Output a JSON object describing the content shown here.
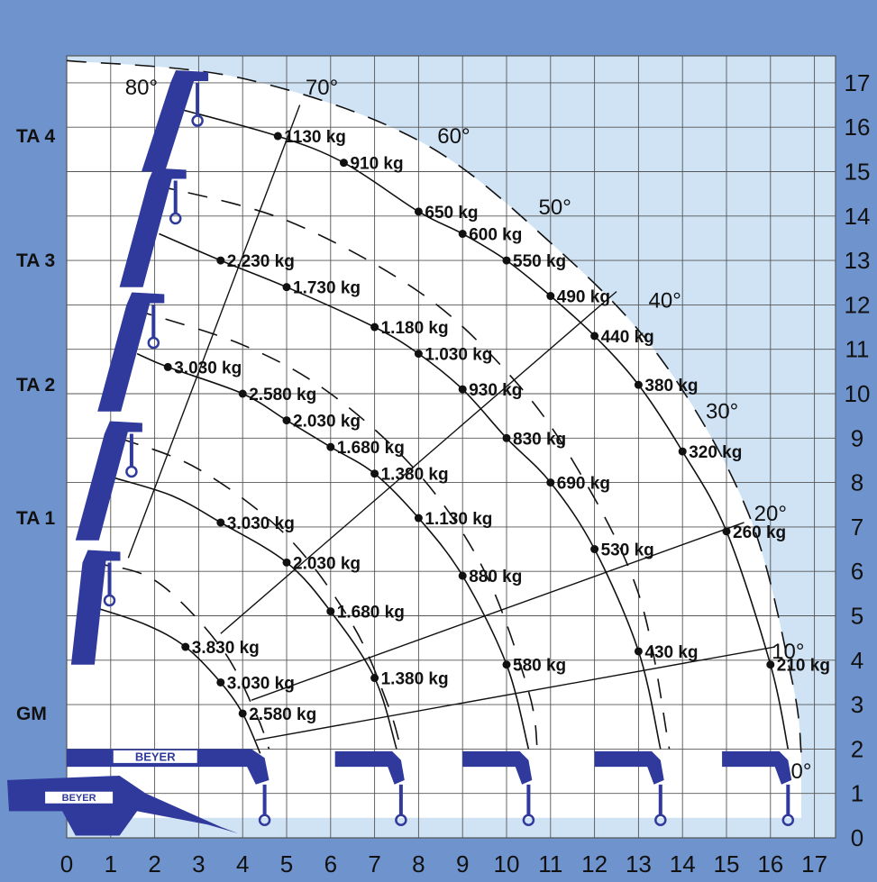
{
  "brand": "BEYER",
  "colors": {
    "frame": "#6f93cd",
    "chart_bg": "#cfe3f5",
    "reach_area": "#ffffff",
    "grid": "#555555",
    "crane": "#2f3a9c",
    "ink": "#111111"
  },
  "chart_data": {
    "type": "load_chart",
    "x_ticks": [
      "0",
      "1",
      "2",
      "3",
      "4",
      "5",
      "6",
      "7",
      "8",
      "9",
      "10",
      "11",
      "12",
      "13",
      "14",
      "15",
      "16",
      "17"
    ],
    "y_ticks": [
      "0",
      "1",
      "2",
      "3",
      "4",
      "5",
      "6",
      "7",
      "8",
      "9",
      "10",
      "11",
      "12",
      "13",
      "14",
      "15",
      "16",
      "17"
    ],
    "xlim": [
      0,
      17.5
    ],
    "ylim": [
      0,
      17.5
    ],
    "angle_labels": [
      {
        "text": "80°",
        "x": 1.7,
        "y": 16.9
      },
      {
        "text": "70°",
        "x": 5.8,
        "y": 16.9
      },
      {
        "text": "60°",
        "x": 8.8,
        "y": 15.8
      },
      {
        "text": "50°",
        "x": 11.1,
        "y": 14.2
      },
      {
        "text": "40°",
        "x": 13.6,
        "y": 12.1
      },
      {
        "text": "30°",
        "x": 14.9,
        "y": 9.6
      },
      {
        "text": "20°",
        "x": 16.0,
        "y": 7.3
      },
      {
        "text": "10°",
        "x": 16.4,
        "y": 4.2
      },
      {
        "text": "0°",
        "x": 16.7,
        "y": 1.5
      }
    ],
    "extension_labels": [
      {
        "text": "TA 4",
        "y": 15.8
      },
      {
        "text": "TA 3",
        "y": 13.0
      },
      {
        "text": "TA 2",
        "y": 10.2
      },
      {
        "text": "TA 1",
        "y": 7.2
      },
      {
        "text": "GM",
        "y": 2.8
      }
    ],
    "load_points": [
      {
        "label": "1130 kg",
        "x": 4.8,
        "y": 15.8
      },
      {
        "label": "910 kg",
        "x": 6.3,
        "y": 15.2
      },
      {
        "label": "650 kg",
        "x": 8.0,
        "y": 14.1
      },
      {
        "label": "600 kg",
        "x": 9.0,
        "y": 13.6
      },
      {
        "label": "550 kg",
        "x": 10.0,
        "y": 13.0
      },
      {
        "label": "490 kg",
        "x": 11.0,
        "y": 12.2
      },
      {
        "label": "440 kg",
        "x": 12.0,
        "y": 11.3
      },
      {
        "label": "380 kg",
        "x": 13.0,
        "y": 10.2
      },
      {
        "label": "320 kg",
        "x": 14.0,
        "y": 8.7
      },
      {
        "label": "260 kg",
        "x": 15.0,
        "y": 6.9
      },
      {
        "label": "210 kg",
        "x": 16.0,
        "y": 3.9
      },
      {
        "label": "2.230 kg",
        "x": 3.5,
        "y": 13.0
      },
      {
        "label": "1.730 kg",
        "x": 5.0,
        "y": 12.4
      },
      {
        "label": "1.180 kg",
        "x": 7.0,
        "y": 11.5
      },
      {
        "label": "1.030 kg",
        "x": 8.0,
        "y": 10.9
      },
      {
        "label": "930 kg",
        "x": 9.0,
        "y": 10.1
      },
      {
        "label": "830 kg",
        "x": 10.0,
        "y": 9.0
      },
      {
        "label": "690 kg",
        "x": 11.0,
        "y": 8.0
      },
      {
        "label": "530 kg",
        "x": 12.0,
        "y": 6.5
      },
      {
        "label": "430 kg",
        "x": 13.0,
        "y": 4.2
      },
      {
        "label": "3.030 kg",
        "x": 2.3,
        "y": 10.6
      },
      {
        "label": "2.580 kg",
        "x": 4.0,
        "y": 10.0
      },
      {
        "label": "2.030 kg",
        "x": 5.0,
        "y": 9.4
      },
      {
        "label": "1.680 kg",
        "x": 6.0,
        "y": 8.8
      },
      {
        "label": "1.380 kg",
        "x": 7.0,
        "y": 8.2
      },
      {
        "label": "1.130 kg",
        "x": 8.0,
        "y": 7.2
      },
      {
        "label": "880 kg",
        "x": 9.0,
        "y": 5.9
      },
      {
        "label": "580 kg",
        "x": 10.0,
        "y": 3.9
      },
      {
        "label": "3.030 kg",
        "x": 3.5,
        "y": 7.1
      },
      {
        "label": "2.030 kg",
        "x": 5.0,
        "y": 6.2
      },
      {
        "label": "1.680 kg",
        "x": 6.0,
        "y": 5.1
      },
      {
        "label": "1.380 kg",
        "x": 7.0,
        "y": 3.6
      },
      {
        "label": "3.830 kg",
        "x": 2.7,
        "y": 4.3
      },
      {
        "label": "3.030 kg",
        "x": 3.5,
        "y": 3.5
      },
      {
        "label": "2.580 kg",
        "x": 4.0,
        "y": 2.8
      }
    ],
    "reach_arcs": [
      {
        "name": "GM",
        "pts": [
          [
            0.6,
            5.2
          ],
          [
            1.8,
            4.8
          ],
          [
            2.7,
            4.3
          ],
          [
            3.5,
            3.5
          ],
          [
            4.0,
            2.8
          ],
          [
            4.4,
            1.9
          ]
        ]
      },
      {
        "name": "TA 1",
        "pts": [
          [
            1.1,
            8.1
          ],
          [
            2.4,
            7.7
          ],
          [
            3.5,
            7.1
          ],
          [
            5.0,
            6.2
          ],
          [
            6.0,
            5.1
          ],
          [
            7.0,
            3.6
          ],
          [
            7.5,
            2.0
          ]
        ]
      },
      {
        "name": "TA 2",
        "pts": [
          [
            1.6,
            10.9
          ],
          [
            2.3,
            10.6
          ],
          [
            4.0,
            10.0
          ],
          [
            5.0,
            9.4
          ],
          [
            6.0,
            8.8
          ],
          [
            7.0,
            8.2
          ],
          [
            8.0,
            7.2
          ],
          [
            9.0,
            5.9
          ],
          [
            10.0,
            3.9
          ],
          [
            10.5,
            2.0
          ]
        ]
      },
      {
        "name": "TA 3",
        "pts": [
          [
            2.1,
            13.6
          ],
          [
            3.5,
            13.0
          ],
          [
            5.0,
            12.4
          ],
          [
            7.0,
            11.5
          ],
          [
            8.0,
            10.9
          ],
          [
            9.0,
            10.1
          ],
          [
            10.0,
            9.0
          ],
          [
            11.0,
            8.0
          ],
          [
            12.0,
            6.5
          ],
          [
            13.0,
            4.2
          ],
          [
            13.5,
            2.0
          ]
        ]
      },
      {
        "name": "TA 4",
        "pts": [
          [
            2.6,
            16.4
          ],
          [
            4.8,
            15.8
          ],
          [
            6.3,
            15.2
          ],
          [
            8.0,
            14.1
          ],
          [
            9.0,
            13.6
          ],
          [
            10.0,
            13.0
          ],
          [
            11.0,
            12.2
          ],
          [
            12.0,
            11.3
          ],
          [
            13.0,
            10.2
          ],
          [
            14.0,
            8.7
          ],
          [
            15.0,
            6.9
          ],
          [
            16.0,
            3.9
          ],
          [
            16.4,
            2.0
          ]
        ]
      }
    ],
    "boom_arcs": [
      {
        "name": "outer",
        "pts": [
          [
            0.0,
            17.5
          ],
          [
            4.0,
            17.1
          ],
          [
            8.0,
            15.7
          ],
          [
            11.0,
            13.4
          ],
          [
            13.5,
            10.8
          ],
          [
            15.5,
            7.3
          ],
          [
            16.5,
            3.5
          ],
          [
            16.7,
            1.9
          ]
        ]
      },
      {
        "name": "TA 3",
        "pts": [
          [
            2.0,
            14.7
          ],
          [
            5.0,
            13.9
          ],
          [
            8.0,
            12.3
          ],
          [
            10.0,
            10.5
          ],
          [
            11.5,
            8.5
          ],
          [
            13.0,
            5.5
          ],
          [
            13.7,
            2.0
          ]
        ]
      },
      {
        "name": "TA 2",
        "pts": [
          [
            1.5,
            11.9
          ],
          [
            4.0,
            11.1
          ],
          [
            6.0,
            10.0
          ],
          [
            8.0,
            8.2
          ],
          [
            9.5,
            6.0
          ],
          [
            10.5,
            3.3
          ],
          [
            10.7,
            2.0
          ]
        ]
      },
      {
        "name": "TA 1",
        "pts": [
          [
            1.2,
            9.0
          ],
          [
            3.0,
            8.3
          ],
          [
            5.0,
            6.8
          ],
          [
            6.5,
            4.8
          ],
          [
            7.3,
            3.0
          ],
          [
            7.6,
            2.0
          ]
        ]
      },
      {
        "name": "GM",
        "pts": [
          [
            0.5,
            6.2
          ],
          [
            2.0,
            5.8
          ],
          [
            3.5,
            4.3
          ],
          [
            4.3,
            2.8
          ],
          [
            4.6,
            2.0
          ]
        ]
      }
    ],
    "angle_lines": [
      {
        "name": "70°",
        "pts": [
          [
            1.4,
            6.3
          ],
          [
            5.3,
            16.5
          ]
        ]
      },
      {
        "name": "40°",
        "pts": [
          [
            3.5,
            4.6
          ],
          [
            12.5,
            12.3
          ]
        ]
      },
      {
        "name": "20°",
        "pts": [
          [
            4.2,
            3.1
          ],
          [
            15.4,
            7.1
          ]
        ]
      },
      {
        "name": "10°",
        "pts": [
          [
            4.3,
            2.2
          ],
          [
            16.1,
            4.3
          ]
        ]
      }
    ],
    "trucks_x": [
      7.6,
      10.5,
      13.5,
      16.4
    ]
  }
}
